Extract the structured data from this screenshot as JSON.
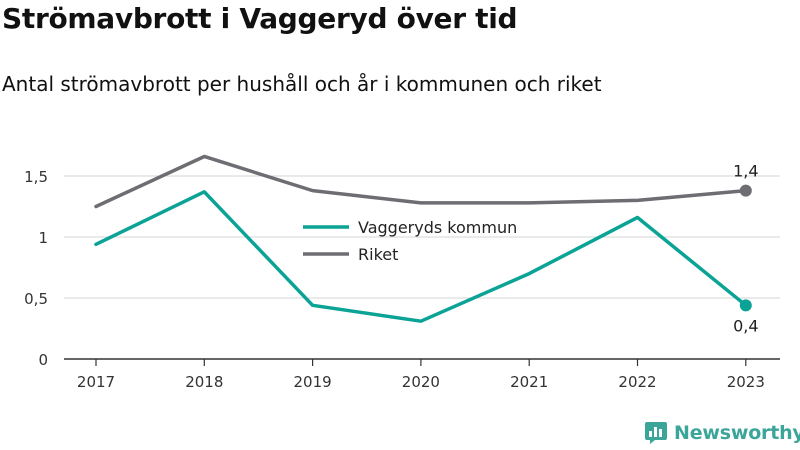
{
  "title": "Strömavbrott i Vaggeryd över tid",
  "subtitle": "Antal strömavbrott per hushåll och år i kommunen och riket",
  "brand": {
    "name": "Newsworthy",
    "logo_icon": "bar-chart-logo-icon",
    "color": "#3ba59a"
  },
  "chart_data": {
    "type": "line",
    "title": "Strömavbrott i Vaggeryd över tid",
    "subtitle": "Antal strömavbrott per hushåll och år i kommunen och riket",
    "xlabel": "",
    "ylabel": "",
    "x": [
      "2017",
      "2018",
      "2019",
      "2020",
      "2021",
      "2022",
      "2023"
    ],
    "ylim": [
      0,
      1.8
    ],
    "yticks": [
      {
        "value": 0,
        "label": "0"
      },
      {
        "value": 0.5,
        "label": "0,5"
      },
      {
        "value": 1,
        "label": "1"
      },
      {
        "value": 1.5,
        "label": "1,5"
      }
    ],
    "grid": true,
    "legend_placement": "center",
    "series": [
      {
        "name": "Vaggeryds kommun",
        "color": "#0aa396",
        "values": [
          0.94,
          1.37,
          0.44,
          0.31,
          0.7,
          1.16,
          0.44
        ],
        "end_label": "0,4",
        "end_label_position": "below"
      },
      {
        "name": "Riket",
        "color": "#6e6d73",
        "values": [
          1.25,
          1.66,
          1.38,
          1.28,
          1.28,
          1.3,
          1.38
        ],
        "end_label": "1,4",
        "end_label_position": "above"
      }
    ]
  }
}
